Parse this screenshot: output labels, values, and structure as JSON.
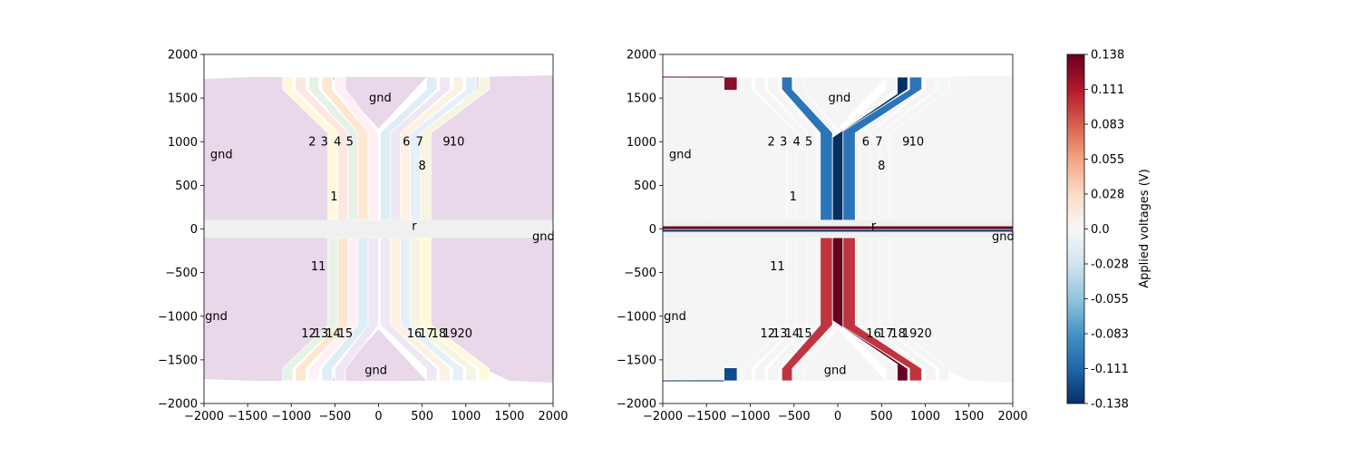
{
  "chart_data": [
    {
      "type": "map",
      "title": "",
      "xlabel": "",
      "ylabel": "",
      "xlim": [
        -2000,
        2000
      ],
      "ylim": [
        -2000,
        2000
      ],
      "xticks": [
        -2000,
        -1500,
        -1000,
        -500,
        0,
        500,
        1000,
        1500,
        2000
      ],
      "yticks": [
        -2000,
        -1500,
        -1000,
        -500,
        0,
        500,
        1000,
        1500,
        2000
      ],
      "tick_labels_x": [
        "−2000",
        "−1500",
        "−1000",
        "−500",
        "0",
        "500",
        "1000",
        "1500",
        "2000"
      ],
      "tick_labels_y": [
        "−2000",
        "−1500",
        "−1000",
        "−500",
        "0",
        "500",
        "1000",
        "1500",
        "2000"
      ],
      "labels": [
        {
          "text": "gnd",
          "x": 20,
          "y": 1500
        },
        {
          "text": "gnd",
          "x": -1800,
          "y": 850
        },
        {
          "text": "2",
          "x": -760,
          "y": 1000
        },
        {
          "text": "3",
          "x": -620,
          "y": 1000
        },
        {
          "text": "4",
          "x": -470,
          "y": 1000
        },
        {
          "text": "5",
          "x": -330,
          "y": 1000
        },
        {
          "text": "6",
          "x": 320,
          "y": 1000
        },
        {
          "text": "7",
          "x": 470,
          "y": 1000
        },
        {
          "text": "9",
          "x": 780,
          "y": 1000
        },
        {
          "text": "10",
          "x": 900,
          "y": 1000
        },
        {
          "text": "8",
          "x": 500,
          "y": 720
        },
        {
          "text": "1",
          "x": -510,
          "y": 370
        },
        {
          "text": "r",
          "x": 410,
          "y": 30
        },
        {
          "text": "gnd",
          "x": 1890,
          "y": -90
        },
        {
          "text": "11",
          "x": -690,
          "y": -430
        },
        {
          "text": "gnd",
          "x": -1860,
          "y": -1000
        },
        {
          "text": "12",
          "x": -800,
          "y": -1200
        },
        {
          "text": "13",
          "x": -660,
          "y": -1200
        },
        {
          "text": "14",
          "x": -520,
          "y": -1200
        },
        {
          "text": "15",
          "x": -380,
          "y": -1200
        },
        {
          "text": "16",
          "x": 410,
          "y": -1200
        },
        {
          "text": "17",
          "x": 550,
          "y": -1200
        },
        {
          "text": "18",
          "x": 690,
          "y": -1200
        },
        {
          "text": "19",
          "x": 820,
          "y": -1200
        },
        {
          "text": "20",
          "x": 990,
          "y": -1200
        },
        {
          "text": "gnd",
          "x": -30,
          "y": -1620
        }
      ]
    },
    {
      "type": "map",
      "title": "",
      "xlabel": "",
      "ylabel": "",
      "xlim": [
        -2000,
        2000
      ],
      "ylim": [
        -2000,
        2000
      ],
      "labels_same_as_left": true
    },
    {
      "type": "colorbar",
      "label": "Applied voltages (V)",
      "range": [
        -0.138,
        0.138
      ],
      "ticks": [
        "0.138",
        "0.111",
        "0.083",
        "0.055",
        "0.028",
        "0.0",
        "-0.028",
        "-0.055",
        "-0.083",
        "-0.111",
        "-0.138"
      ]
    }
  ],
  "colors": {
    "ground": "#e8d8ea",
    "light_gray": "#f5f5f5",
    "deep_red": "#67001f",
    "red": "#b2182b",
    "red_mid": "#c0343f",
    "blue": "#2c74b8",
    "deep_blue": "#053061"
  }
}
